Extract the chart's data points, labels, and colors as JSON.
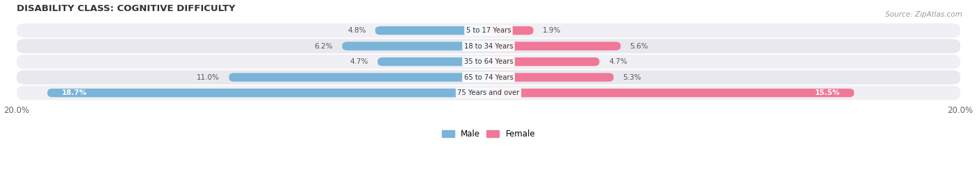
{
  "title": "DISABILITY CLASS: COGNITIVE DIFFICULTY",
  "source": "Source: ZipAtlas.com",
  "categories": [
    "5 to 17 Years",
    "18 to 34 Years",
    "35 to 64 Years",
    "65 to 74 Years",
    "75 Years and over"
  ],
  "male_values": [
    4.8,
    6.2,
    4.7,
    11.0,
    18.7
  ],
  "female_values": [
    1.9,
    5.6,
    4.7,
    5.3,
    15.5
  ],
  "max_val": 20.0,
  "male_color": "#7ab4d8",
  "female_color": "#f07898",
  "row_colors": [
    "#f0f0f4",
    "#e8e8ef"
  ],
  "title_color": "#333333",
  "source_color": "#999999",
  "axis_label_color": "#666666",
  "legend_male_color": "#7ab4d8",
  "legend_female_color": "#f07898",
  "label_outside_color": "#555555",
  "label_inside_color": "#ffffff"
}
